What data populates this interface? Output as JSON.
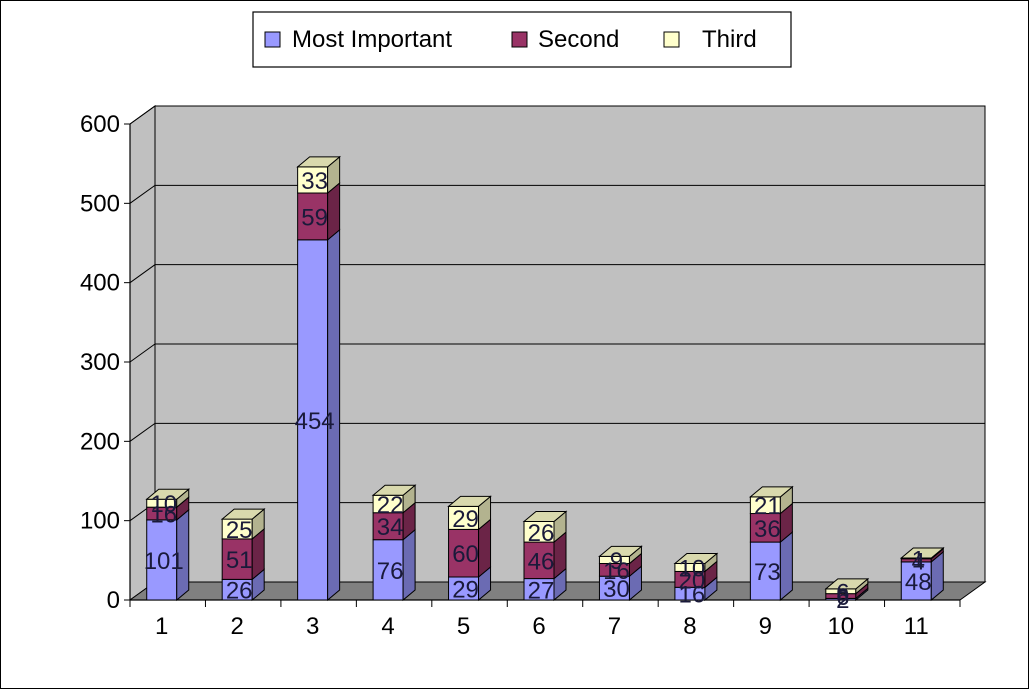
{
  "chart_data": {
    "type": "bar",
    "stacked": true,
    "three_d": true,
    "categories": [
      "1",
      "2",
      "3",
      "4",
      "5",
      "6",
      "7",
      "8",
      "9",
      "10",
      "11"
    ],
    "series": [
      {
        "name": "Most Important",
        "color": "#9999ff",
        "values": [
          101,
          26,
          454,
          76,
          29,
          27,
          30,
          16,
          73,
          2,
          48
        ]
      },
      {
        "name": "Second",
        "color": "#993366",
        "values": [
          16,
          51,
          59,
          34,
          60,
          46,
          16,
          20,
          36,
          6,
          4
        ]
      },
      {
        "name": "Third",
        "color": "#ffffcc",
        "values": [
          10,
          25,
          33,
          22,
          29,
          26,
          9,
          10,
          21,
          6,
          1
        ]
      }
    ],
    "y_ticks": [
      "0",
      "100",
      "200",
      "300",
      "400",
      "500",
      "600"
    ],
    "ylim": [
      0,
      600
    ],
    "grid": true,
    "legend_position": "top",
    "wall_color": "#c0c0c0",
    "floor_color": "#808080"
  }
}
